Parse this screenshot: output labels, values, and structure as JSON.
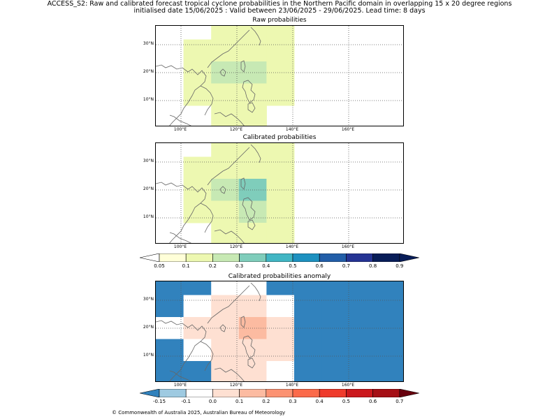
{
  "title": {
    "line1": "ACCESS_S2: Raw and calibrated forecast tropical cyclone probabilities in the Northern Pacific domain in overlapping 15 x 20 degree regions",
    "line2": "initialised date 15/06/2025 :  Valid between 23/06/2025 - 29/06/2025. Lead time: 8 days"
  },
  "axes": {
    "lat_labels": [
      "30°N",
      "20°N",
      "10°N"
    ],
    "lon_labels": [
      "100°E",
      "120°E",
      "140°E",
      "160°E"
    ]
  },
  "panels": [
    {
      "title": "Raw probabilities",
      "grid": [
        [
          null,
          null,
          0.1,
          0.15,
          0.1,
          null,
          null,
          null,
          null
        ],
        [
          null,
          0.1,
          0.15,
          0.15,
          0.1,
          null,
          null,
          null,
          null
        ],
        [
          null,
          0.15,
          0.2,
          0.2,
          0.15,
          null,
          null,
          null,
          null
        ],
        [
          null,
          0.1,
          0.15,
          0.15,
          0.1,
          null,
          null,
          null,
          null
        ],
        [
          null,
          null,
          0.1,
          0.1,
          null,
          null,
          null,
          null,
          null
        ]
      ]
    },
    {
      "title": "Calibrated probabilities",
      "grid": [
        [
          null,
          null,
          0.1,
          0.15,
          0.1,
          null,
          null,
          null,
          null
        ],
        [
          null,
          0.1,
          0.15,
          0.15,
          0.1,
          null,
          null,
          null,
          null
        ],
        [
          null,
          0.15,
          0.2,
          0.3,
          0.15,
          null,
          null,
          null,
          null
        ],
        [
          null,
          0.1,
          0.15,
          0.2,
          0.15,
          null,
          null,
          null,
          null
        ],
        [
          null,
          null,
          0.1,
          0.1,
          0.1,
          null,
          null,
          null,
          null
        ]
      ]
    },
    {
      "title": "Calibrated probabilities anomaly",
      "grid": [
        [
          -0.15,
          -0.15,
          -0.1,
          -0.1,
          -0.15,
          -0.15,
          -0.15,
          -0.15,
          -0.15
        ],
        [
          -0.15,
          -0.1,
          0.0,
          0.0,
          -0.1,
          -0.15,
          -0.15,
          -0.15,
          -0.15
        ],
        [
          -0.1,
          0.0,
          0.05,
          0.15,
          0.0,
          -0.15,
          -0.15,
          -0.15,
          -0.15
        ],
        [
          -0.15,
          -0.1,
          0.0,
          0.05,
          0.0,
          -0.15,
          -0.15,
          -0.15,
          -0.15
        ],
        [
          -0.15,
          -0.15,
          0.0,
          0.0,
          -0.1,
          -0.15,
          -0.15,
          -0.15,
          -0.15
        ]
      ]
    }
  ],
  "colorbar_prob": {
    "ticks": [
      "0.05",
      "0.1",
      "0.2",
      "0.3",
      "0.4",
      "0.5",
      "0.6",
      "0.7",
      "0.8",
      "0.9"
    ],
    "colors": [
      "#ffffd8",
      "#edf8b1",
      "#c7e9b4",
      "#7fcdbb",
      "#41b6c4",
      "#1d91c0",
      "#225ea8",
      "#253494",
      "#081d58"
    ],
    "under": "#ffffff",
    "over": "#081d58"
  },
  "colorbar_anom": {
    "ticks": [
      "-0.15",
      "-0.1",
      "0.0",
      "0.1",
      "0.2",
      "0.3",
      "0.4",
      "0.5",
      "0.6",
      "0.7"
    ],
    "colors": [
      "#9ecae1",
      "#ffffff",
      "#fee0d2",
      "#fcbba1",
      "#fc9272",
      "#fb6a4a",
      "#ef3b2c",
      "#cb181d",
      "#a50f15"
    ],
    "under": "#3182bd",
    "over": "#67000d"
  },
  "footer": "© Commonwealth of Australia 2025, Australian Bureau of Meteorology"
}
